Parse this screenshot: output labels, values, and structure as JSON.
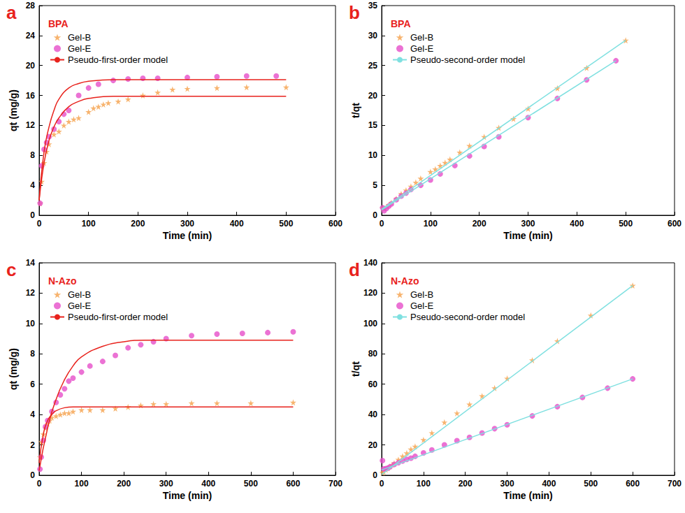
{
  "chart_data": [
    {
      "type": "scatter",
      "panel_label": "a",
      "title": "BPA",
      "x_label": "Time (min)",
      "y_label": "qt (mg/g)",
      "xlim": [
        0,
        600
      ],
      "xticks": [
        0,
        100,
        200,
        300,
        400,
        500,
        600
      ],
      "ylim": [
        0,
        28
      ],
      "yticks": [
        0,
        4,
        8,
        12,
        16,
        20,
        24,
        28
      ],
      "grid": false,
      "legend": "upper left",
      "series": [
        {
          "name": "Gel-B",
          "color": "#f5a04a",
          "marker": "star",
          "x": [
            2,
            5,
            10,
            15,
            20,
            30,
            40,
            50,
            60,
            70,
            80,
            100,
            110,
            120,
            130,
            140,
            160,
            180,
            210,
            240,
            270,
            300,
            360,
            420,
            500
          ],
          "values": [
            1.6,
            4.5,
            7,
            8.5,
            9.5,
            10.8,
            11.2,
            12,
            12.5,
            12.8,
            13,
            13.8,
            14.3,
            14.5,
            14.8,
            15,
            15.2,
            15.5,
            16,
            16.4,
            16.8,
            16.9,
            17,
            17.1,
            17.1
          ]
        },
        {
          "name": "Gel-E",
          "color": "#e64fc9",
          "marker": "circle",
          "x": [
            2,
            5,
            10,
            15,
            20,
            30,
            40,
            50,
            60,
            80,
            100,
            120,
            150,
            180,
            210,
            240,
            300,
            360,
            420,
            480
          ],
          "values": [
            1.6,
            6.6,
            8.8,
            9.7,
            10.5,
            11.5,
            12.5,
            13.5,
            14,
            16,
            17,
            17.5,
            18,
            18.2,
            18.3,
            18.3,
            18.4,
            18.5,
            18.6,
            18.6
          ]
        },
        {
          "name": "Pseudo-first-order model",
          "type": "line",
          "color": "#e8221c",
          "line_style": "solid",
          "x": [
            0,
            10,
            20,
            30,
            40,
            60,
            80,
            100,
            150,
            200,
            300,
            400,
            500
          ],
          "values": [
            2,
            7,
            10,
            11.8,
            13,
            14.5,
            15.2,
            15.6,
            15.9,
            15.9,
            15.9,
            15.9,
            15.9
          ]
        },
        {
          "name": "Pseudo-first-order model",
          "type": "line",
          "color": "#e8221c",
          "line_style": "solid",
          "x": [
            0,
            10,
            20,
            30,
            40,
            60,
            80,
            100,
            150,
            200,
            300,
            400,
            500
          ],
          "values": [
            2,
            8.5,
            11.8,
            14,
            15.5,
            17,
            17.6,
            17.9,
            18.1,
            18.1,
            18.1,
            18.1,
            18.1
          ]
        }
      ]
    },
    {
      "type": "scatter",
      "panel_label": "b",
      "title": "BPA",
      "x_label": "Time (min)",
      "y_label": "t/qt",
      "xlim": [
        0,
        600
      ],
      "xticks": [
        0,
        100,
        200,
        300,
        400,
        500,
        600
      ],
      "ylim": [
        0,
        35
      ],
      "yticks": [
        0,
        5,
        10,
        15,
        20,
        25,
        30,
        35
      ],
      "grid": false,
      "legend": "upper left",
      "series": [
        {
          "name": "Gel-B",
          "color": "#f5a04a",
          "marker": "star",
          "x": [
            2,
            5,
            10,
            15,
            20,
            30,
            40,
            50,
            60,
            70,
            80,
            100,
            110,
            120,
            130,
            140,
            160,
            180,
            210,
            240,
            270,
            300,
            360,
            420,
            500
          ],
          "values": [
            1.25,
            1.1,
            1.43,
            1.76,
            2.1,
            2.78,
            3.57,
            4.17,
            4.8,
            5.47,
            6.15,
            7.25,
            7.7,
            8.28,
            8.78,
            9.33,
            10.5,
            11.6,
            13.1,
            14.6,
            16.1,
            17.8,
            21.2,
            24.6,
            29.2
          ]
        },
        {
          "name": "Gel-E",
          "color": "#e64fc9",
          "marker": "circle",
          "x": [
            2,
            5,
            10,
            15,
            20,
            30,
            40,
            50,
            60,
            80,
            100,
            120,
            150,
            180,
            210,
            240,
            300,
            360,
            420,
            480
          ],
          "values": [
            1.25,
            0.76,
            1.14,
            1.55,
            1.9,
            2.6,
            3.2,
            3.7,
            4.3,
            5,
            5.9,
            6.9,
            8.3,
            9.9,
            11.5,
            13.1,
            16.3,
            19.5,
            22.6,
            25.8
          ]
        },
        {
          "name": "Pseudo-second-order model",
          "type": "line",
          "color": "#7fe0e0",
          "line_style": "solid",
          "x": [
            0,
            500
          ],
          "values": [
            1.0,
            29.2
          ]
        },
        {
          "name": "Pseudo-second-order model",
          "type": "line",
          "color": "#7fe0e0",
          "line_style": "solid",
          "x": [
            0,
            480
          ],
          "values": [
            0.9,
            25.8
          ]
        }
      ]
    },
    {
      "type": "scatter",
      "panel_label": "c",
      "title": "N-Azo",
      "x_label": "Time (min)",
      "y_label": "qt (mg/g)",
      "xlim": [
        0,
        700
      ],
      "xticks": [
        0,
        100,
        200,
        300,
        400,
        500,
        600,
        700
      ],
      "ylim": [
        0,
        14
      ],
      "yticks": [
        0,
        2,
        4,
        6,
        8,
        10,
        12,
        14
      ],
      "grid": false,
      "legend": "upper left",
      "series": [
        {
          "name": "Gel-B",
          "color": "#f5a04a",
          "marker": "star",
          "x": [
            2,
            5,
            10,
            15,
            20,
            25,
            30,
            40,
            50,
            60,
            70,
            80,
            100,
            120,
            150,
            180,
            210,
            240,
            270,
            300,
            360,
            420,
            500,
            600
          ],
          "values": [
            1.2,
            2.2,
            2.7,
            3.1,
            3.4,
            3.6,
            3.8,
            3.9,
            4.0,
            4.1,
            4.1,
            4.2,
            4.3,
            4.3,
            4.3,
            4.4,
            4.5,
            4.6,
            4.7,
            4.7,
            4.75,
            4.75,
            4.75,
            4.8
          ]
        },
        {
          "name": "Gel-E",
          "color": "#e64fc9",
          "marker": "circle",
          "x": [
            2,
            5,
            10,
            15,
            20,
            30,
            40,
            50,
            60,
            70,
            80,
            100,
            120,
            150,
            180,
            210,
            240,
            270,
            300,
            360,
            420,
            480,
            540,
            600
          ],
          "values": [
            0.4,
            1.2,
            2.3,
            3.2,
            3.6,
            4.2,
            4.8,
            5.3,
            5.7,
            6.2,
            6.4,
            6.8,
            7.2,
            7.5,
            7.9,
            8.4,
            8.6,
            8.8,
            9.0,
            9.2,
            9.3,
            9.35,
            9.4,
            9.45
          ]
        },
        {
          "name": "Pseudo-first-order model",
          "type": "line",
          "color": "#e8221c",
          "line_style": "solid",
          "x": [
            0,
            10,
            20,
            30,
            40,
            60,
            80,
            100,
            200,
            400,
            600
          ],
          "values": [
            0.8,
            2.7,
            3.6,
            4.0,
            4.25,
            4.45,
            4.5,
            4.5,
            4.5,
            4.5,
            4.5
          ]
        },
        {
          "name": "Pseudo-first-order model",
          "type": "line",
          "color": "#e8221c",
          "line_style": "solid",
          "x": [
            0,
            20,
            40,
            60,
            80,
            100,
            150,
            200,
            250,
            300,
            400,
            500,
            600
          ],
          "values": [
            0.3,
            3.1,
            5.0,
            6.3,
            7.2,
            7.8,
            8.5,
            8.8,
            8.9,
            8.9,
            8.9,
            8.9,
            8.9
          ]
        }
      ]
    },
    {
      "type": "scatter",
      "panel_label": "d",
      "title": "N-Azo",
      "x_label": "Time (min)",
      "y_label": "t/qt",
      "xlim": [
        0,
        700
      ],
      "xticks": [
        0,
        100,
        200,
        300,
        400,
        500,
        600,
        700
      ],
      "ylim": [
        0,
        140
      ],
      "yticks": [
        0,
        20,
        40,
        60,
        80,
        100,
        120,
        140
      ],
      "grid": false,
      "legend": "upper left",
      "series": [
        {
          "name": "Gel-B",
          "color": "#f5a04a",
          "marker": "star",
          "x": [
            2,
            5,
            10,
            15,
            20,
            25,
            30,
            40,
            50,
            60,
            70,
            80,
            100,
            120,
            150,
            180,
            210,
            240,
            270,
            300,
            360,
            420,
            500,
            600
          ],
          "values": [
            1.7,
            2.3,
            3.7,
            4.8,
            5.9,
            6.9,
            7.9,
            10.3,
            12.5,
            14.6,
            17.1,
            19,
            23.3,
            27.9,
            34.9,
            40.9,
            46.7,
            52.2,
            57.4,
            63.8,
            75.8,
            88.4,
            105.3,
            125
          ]
        },
        {
          "name": "Gel-E",
          "color": "#e64fc9",
          "marker": "circle",
          "x": [
            2,
            5,
            10,
            15,
            20,
            30,
            40,
            50,
            60,
            70,
            80,
            100,
            120,
            150,
            180,
            210,
            240,
            270,
            300,
            360,
            420,
            480,
            540,
            600
          ],
          "values": [
            9.7,
            4.2,
            4.3,
            4.7,
            5.6,
            7.1,
            8.3,
            9.4,
            10.5,
            11.3,
            12.5,
            14.7,
            16.7,
            20,
            22.8,
            25,
            27.9,
            30.7,
            33.3,
            39.1,
            45.2,
            51.3,
            57.4,
            63.5
          ]
        },
        {
          "name": "Pseudo-second-order model",
          "type": "line",
          "color": "#7fe0e0",
          "line_style": "solid",
          "x": [
            0,
            600
          ],
          "values": [
            0.5,
            125
          ]
        },
        {
          "name": "Pseudo-second-order model",
          "type": "line",
          "color": "#7fe0e0",
          "line_style": "solid",
          "x": [
            0,
            600
          ],
          "values": [
            3.5,
            63.5
          ]
        }
      ]
    }
  ]
}
